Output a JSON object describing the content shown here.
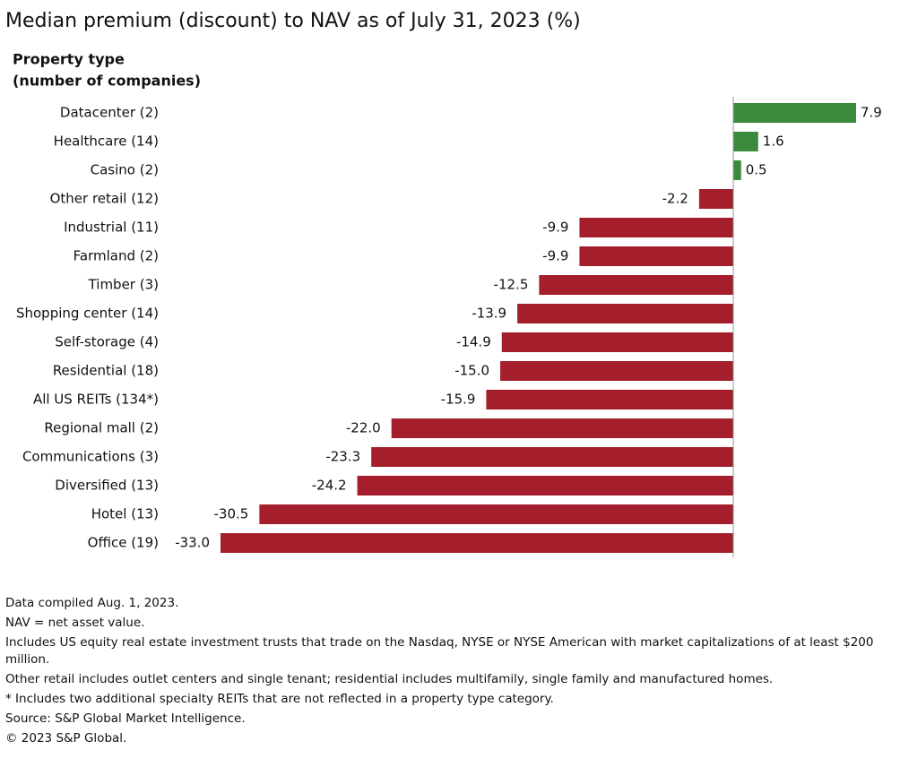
{
  "chart_data": {
    "type": "hbar",
    "title": "Median premium (discount) to NAV as of July 31, 2023 (%)",
    "y_axis_label": [
      "Property type",
      "(number of companies)"
    ],
    "categories": [
      "Datacenter (2)",
      "Healthcare (14)",
      "Casino (2)",
      "Other retail (12)",
      "Industrial (11)",
      "Farmland (2)",
      "Timber (3)",
      "Shopping center (14)",
      "Self-storage (4)",
      "Residential (18)",
      "All US REITs (134*)",
      "Regional mall (2)",
      "Communications (3)",
      "Diversified (13)",
      "Hotel (13)",
      "Office (19)"
    ],
    "values": [
      7.9,
      1.6,
      0.5,
      -2.2,
      -9.9,
      -9.9,
      -12.5,
      -13.9,
      -14.9,
      -15,
      -15.9,
      -22,
      -23.3,
      -24.2,
      -30.5,
      -33
    ],
    "value_labels": [
      "7.9",
      "1.6",
      "0.5",
      "-2.2",
      "-9.9",
      "-9.9",
      "-12.5",
      "-13.9",
      "-14.9",
      "-15.0",
      "-15.9",
      "-22.0",
      "-23.3",
      "-24.2",
      "-30.5",
      "-33.0"
    ],
    "color_positive": "#3a8a3e",
    "color_negative": "#a41e2c",
    "xlim": [
      -33,
      7.9
    ],
    "notes": [
      "Data compiled Aug. 1, 2023.",
      "NAV = net asset value.",
      "Includes US equity real estate investment trusts that trade on the Nasdaq, NYSE or NYSE American with market capitalizations of at least $200 million.",
      "Other retail includes outlet centers and single tenant; residential includes multifamily, single family and manufactured homes.",
      "* Includes two additional specialty REITs that are not reflected in a property type category.",
      "Source: S&P Global Market Intelligence.",
      "© 2023 S&P Global."
    ]
  }
}
